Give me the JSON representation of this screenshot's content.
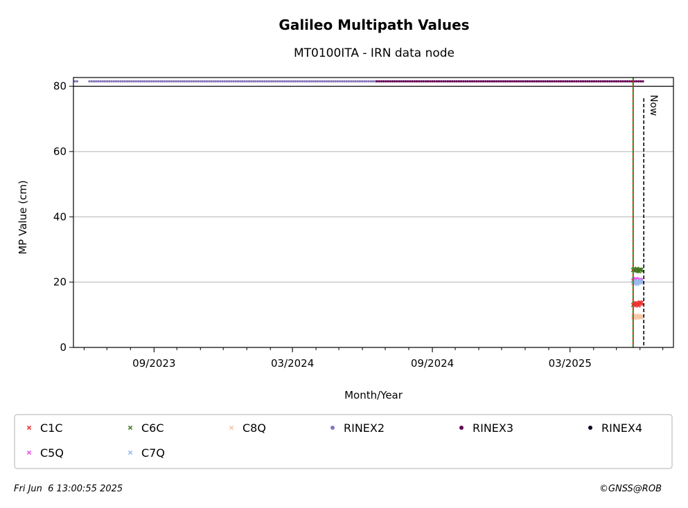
{
  "chart_data": {
    "type": "scatter",
    "title": "Galileo Multipath Values",
    "subtitle": "MT0100ITA - IRN data node",
    "xlabel": "Month/Year",
    "ylabel": "MP Value (cm)",
    "x_ticks": [
      "2023-09-01",
      "2024-03-01",
      "2024-09-01",
      "2025-03-01"
    ],
    "x_tick_labels": [
      "09/2023",
      "03/2024",
      "09/2024",
      "03/2025"
    ],
    "x_minor_ticks": [
      "2023-06-01",
      "2023-07-01",
      "2023-08-01",
      "2023-10-01",
      "2023-11-01",
      "2023-12-01",
      "2024-01-01",
      "2024-02-01",
      "2024-04-01",
      "2024-05-01",
      "2024-06-01",
      "2024-07-01",
      "2024-08-01",
      "2024-10-01",
      "2024-11-01",
      "2024-12-01",
      "2025-01-01",
      "2025-02-01",
      "2025-04-01",
      "2025-05-01",
      "2025-06-01",
      "2025-07-01"
    ],
    "xlim": [
      "2023-05-18",
      "2025-07-15"
    ],
    "ylim": [
      0,
      80
    ],
    "y_ticks": [
      0,
      20,
      40,
      60,
      80
    ],
    "y_tick_labels": [
      "0",
      "20",
      "40",
      "60",
      "80"
    ],
    "grid": "horizontal",
    "legend_placement": "below",
    "legend_columns": 6,
    "now_label": "Now",
    "now_date": "2025-06-06",
    "rinex_change_line": {
      "date": "2025-05-23",
      "colors": [
        "#d62728",
        "#2ca02c"
      ]
    },
    "series": [
      {
        "name": "C1C",
        "marker": "x",
        "color": "#ee3333",
        "x": [
          "2025-05-23",
          "2025-05-24",
          "2025-05-25",
          "2025-05-26",
          "2025-05-27",
          "2025-05-28",
          "2025-05-29",
          "2025-05-30",
          "2025-05-31",
          "2025-06-01",
          "2025-06-02",
          "2025-06-03"
        ],
        "y": [
          13.0,
          13.4,
          12.9,
          13.3,
          13.6,
          13.1,
          13.5,
          12.8,
          13.2,
          13.8,
          13.4,
          13.7
        ]
      },
      {
        "name": "C5Q",
        "marker": "x",
        "color": "#ee55ee",
        "x": [
          "2025-05-23",
          "2025-05-24",
          "2025-05-25",
          "2025-05-26",
          "2025-05-27",
          "2025-05-28",
          "2025-05-29",
          "2025-05-30",
          "2025-05-31",
          "2025-06-01",
          "2025-06-02",
          "2025-06-03"
        ],
        "y": [
          20.5,
          20.8,
          20.3,
          20.9,
          21.0,
          20.6,
          20.4,
          20.7,
          20.2,
          20.8,
          20.5,
          20.6
        ]
      },
      {
        "name": "C6C",
        "marker": "x",
        "color": "#447722",
        "x": [
          "2025-05-23",
          "2025-05-24",
          "2025-05-25",
          "2025-05-26",
          "2025-05-27",
          "2025-05-28",
          "2025-05-29",
          "2025-05-30",
          "2025-05-31",
          "2025-06-01",
          "2025-06-02",
          "2025-06-03"
        ],
        "y": [
          23.7,
          24.0,
          23.5,
          23.9,
          23.6,
          24.1,
          23.4,
          23.8,
          23.3,
          23.9,
          23.6,
          23.8
        ]
      },
      {
        "name": "C7Q",
        "marker": "x",
        "color": "#99bbee",
        "x": [
          "2025-05-23",
          "2025-05-24",
          "2025-05-25",
          "2025-05-26",
          "2025-05-27",
          "2025-05-28",
          "2025-05-29",
          "2025-05-30",
          "2025-05-31",
          "2025-06-01",
          "2025-06-02",
          "2025-06-03"
        ],
        "y": [
          19.8,
          20.2,
          19.6,
          20.3,
          20.0,
          19.4,
          20.1,
          19.7,
          20.4,
          19.9,
          20.2,
          20.0
        ]
      },
      {
        "name": "C8Q",
        "marker": "x",
        "color": "#f5c8a8",
        "x": [
          "2025-05-23",
          "2025-05-24",
          "2025-05-25",
          "2025-05-26",
          "2025-05-27",
          "2025-05-28",
          "2025-05-29",
          "2025-05-30",
          "2025-05-31",
          "2025-06-01",
          "2025-06-02",
          "2025-06-03"
        ],
        "y": [
          9.2,
          9.6,
          9.0,
          9.5,
          9.3,
          9.8,
          9.1,
          9.4,
          9.7,
          9.2,
          9.5,
          9.3
        ]
      },
      {
        "name": "RINEX2",
        "marker": "dot",
        "color": "#8877bb",
        "y_value": 81.5,
        "ranges": [
          [
            "2023-05-20",
            "2023-05-24"
          ],
          [
            "2023-06-08",
            "2024-06-20"
          ]
        ]
      },
      {
        "name": "RINEX3",
        "marker": "dot",
        "color": "#660055",
        "y_value": 81.5,
        "ranges": [
          [
            "2024-06-20",
            "2025-06-06"
          ]
        ]
      },
      {
        "name": "RINEX4",
        "marker": "dot",
        "color": "#110022",
        "y_value": 81.5,
        "ranges": []
      }
    ]
  },
  "footer": {
    "timestamp": "Fri Jun  6 13:00:55 2025",
    "credit": "©GNSS@ROB"
  }
}
